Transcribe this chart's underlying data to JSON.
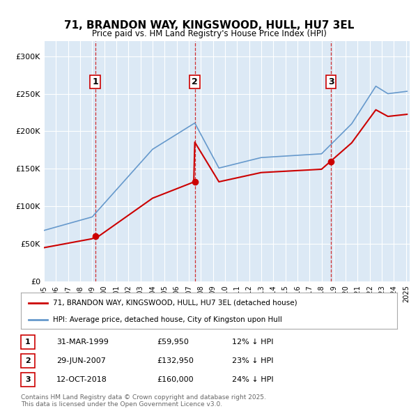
{
  "title": "71, BRANDON WAY, KINGSWOOD, HULL, HU7 3EL",
  "subtitle": "Price paid vs. HM Land Registry's House Price Index (HPI)",
  "property_label": "71, BRANDON WAY, KINGSWOOD, HULL, HU7 3EL (detached house)",
  "hpi_label": "HPI: Average price, detached house, City of Kingston upon Hull",
  "property_color": "#cc0000",
  "hpi_color": "#6699cc",
  "plot_bg_color": "#dce9f5",
  "ylim": [
    0,
    320000
  ],
  "yticks": [
    0,
    50000,
    100000,
    150000,
    200000,
    250000,
    300000
  ],
  "ytick_labels": [
    "£0",
    "£50K",
    "£100K",
    "£150K",
    "£200K",
    "£250K",
    "£300K"
  ],
  "footer": "Contains HM Land Registry data © Crown copyright and database right 2025.\nThis data is licensed under the Open Government Licence v3.0.",
  "transactions": [
    {
      "num": 1,
      "date": "31-MAR-1999",
      "price": "£59,950",
      "hpi_diff": "12% ↓ HPI",
      "year": 1999.25,
      "value": 59950
    },
    {
      "num": 2,
      "date": "29-JUN-2007",
      "price": "£132,950",
      "hpi_diff": "23% ↓ HPI",
      "year": 2007.5,
      "value": 132950
    },
    {
      "num": 3,
      "date": "12-OCT-2018",
      "price": "£160,000",
      "hpi_diff": "24% ↓ HPI",
      "year": 2018.78,
      "value": 160000
    }
  ]
}
